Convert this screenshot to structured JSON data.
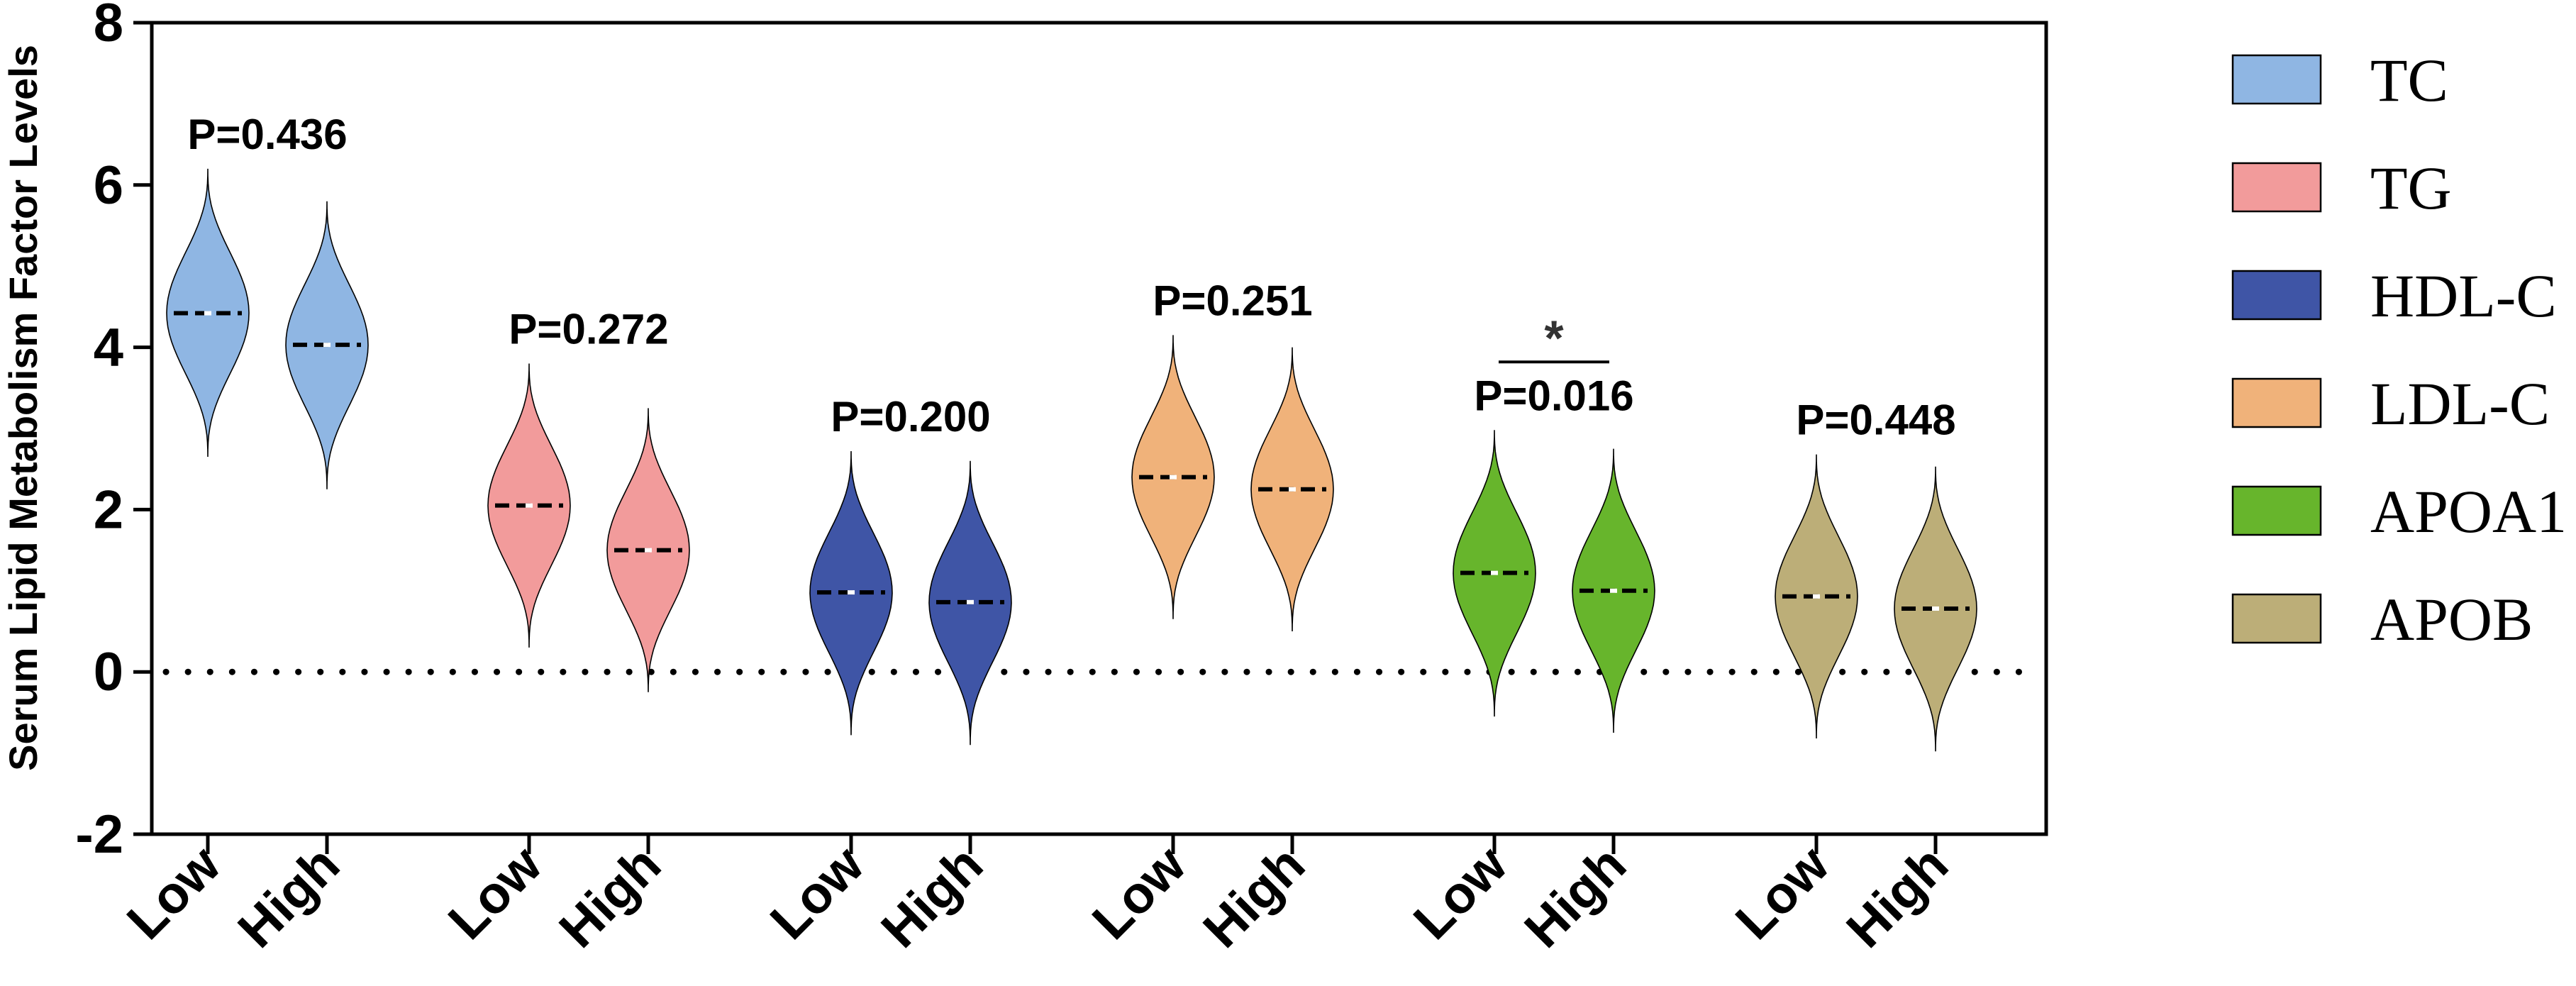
{
  "chart_data": {
    "type": "violin",
    "ylabel": "Serum Lipid Metabolism Factor Levels",
    "ylim": [
      -2,
      8
    ],
    "yticks": [
      -2,
      0,
      2,
      4,
      6,
      8
    ],
    "reference_line": {
      "y": 0,
      "style": "dotted"
    },
    "categories": [
      "Low",
      "High"
    ],
    "groups": [
      {
        "name": "TC",
        "color": "#8fb6e3",
        "p_value": "P=0.436",
        "significance": "",
        "violins": [
          {
            "category": "Low",
            "median": 4.42,
            "min": 2.65,
            "max": 6.2
          },
          {
            "category": "High",
            "median": 4.03,
            "min": 2.25,
            "max": 5.8
          }
        ]
      },
      {
        "name": "TG",
        "color": "#f29b9b",
        "p_value": "P=0.272",
        "significance": "",
        "violins": [
          {
            "category": "Low",
            "median": 2.05,
            "min": 0.3,
            "max": 3.8
          },
          {
            "category": "High",
            "median": 1.5,
            "min": -0.25,
            "max": 3.25
          }
        ]
      },
      {
        "name": "HDL-C",
        "color": "#3f55a6",
        "p_value": "P=0.200",
        "significance": "",
        "violins": [
          {
            "category": "Low",
            "median": 0.98,
            "min": -0.78,
            "max": 2.72
          },
          {
            "category": "High",
            "median": 0.86,
            "min": -0.9,
            "max": 2.6
          }
        ]
      },
      {
        "name": "LDL-C",
        "color": "#f0b27a",
        "p_value": "P=0.251",
        "significance": "",
        "violins": [
          {
            "category": "Low",
            "median": 2.4,
            "min": 0.65,
            "max": 4.15
          },
          {
            "category": "High",
            "median": 2.25,
            "min": 0.5,
            "max": 4.0
          }
        ]
      },
      {
        "name": "APOA1",
        "color": "#67b52c",
        "p_value": "P=0.016",
        "significance": "*",
        "violins": [
          {
            "category": "Low",
            "median": 1.22,
            "min": -0.55,
            "max": 2.98
          },
          {
            "category": "High",
            "median": 1.0,
            "min": -0.75,
            "max": 2.75
          }
        ]
      },
      {
        "name": "APOB",
        "color": "#bcae78",
        "p_value": "P=0.448",
        "significance": "",
        "violins": [
          {
            "category": "Low",
            "median": 0.93,
            "min": -0.82,
            "max": 2.68
          },
          {
            "category": "High",
            "median": 0.78,
            "min": -0.98,
            "max": 2.53
          }
        ]
      }
    ],
    "legend": {
      "position": "right",
      "entries": [
        "TC",
        "TG",
        "HDL-C",
        "LDL-C",
        "APOA1",
        "APOB"
      ]
    }
  }
}
